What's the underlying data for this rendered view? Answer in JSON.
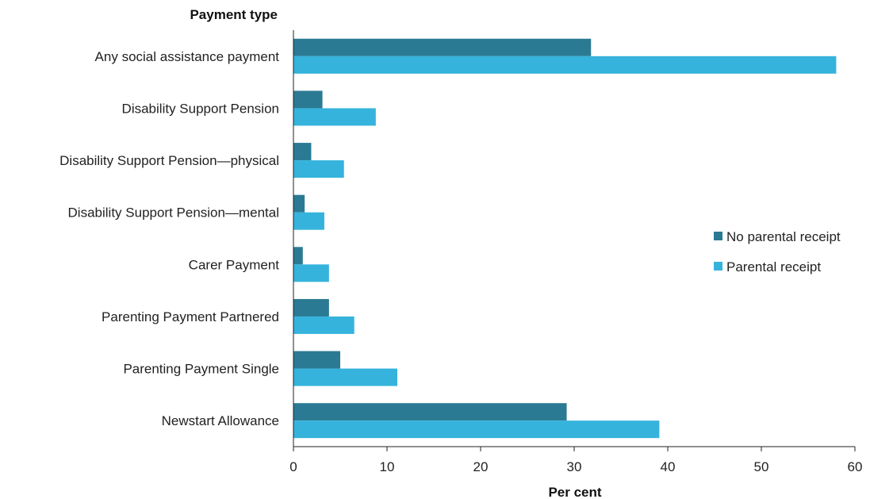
{
  "chart_data": {
    "type": "bar",
    "orientation": "horizontal",
    "y_axis_title": "Payment type",
    "xlabel": "Per cent",
    "xlim": [
      0,
      60
    ],
    "x_ticks": [
      "0",
      "10",
      "20",
      "30",
      "40",
      "50",
      "60"
    ],
    "grid": false,
    "legend_position": "right",
    "categories": [
      "Any social assistance payment",
      "Disability Support Pension",
      "Disability Support Pension—physical",
      "Disability Support Pension—mental",
      "Carer Payment",
      "Parenting Payment Partnered",
      "Parenting Payment Single",
      "Newstart Allowance"
    ],
    "series": [
      {
        "name": "No parental receipt",
        "color": "#2b7a93",
        "values": [
          31.8,
          3.1,
          1.9,
          1.2,
          1.0,
          3.8,
          5.0,
          29.2
        ]
      },
      {
        "name": "Parental receipt",
        "color": "#35b3dc",
        "values": [
          58.0,
          8.8,
          5.4,
          3.3,
          3.8,
          6.5,
          11.1,
          39.1
        ]
      }
    ]
  }
}
